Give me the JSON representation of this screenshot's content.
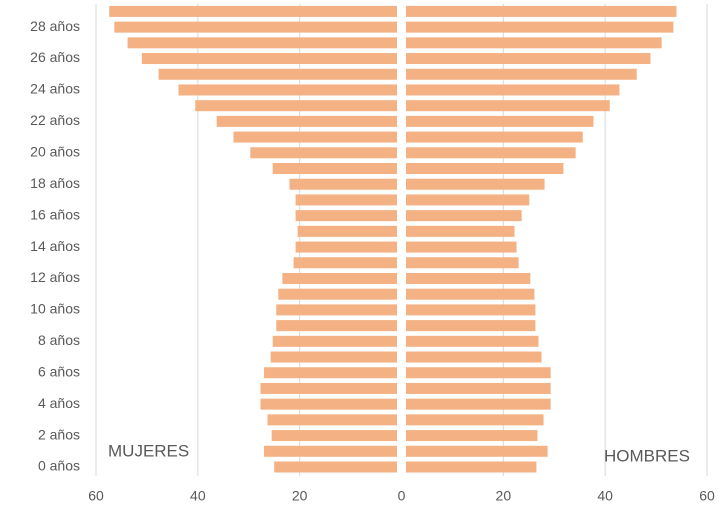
{
  "chart_data": {
    "type": "pyramid",
    "categories": [
      "0 años",
      null,
      "2 años",
      null,
      "4 años",
      null,
      "6 años",
      null,
      "8 años",
      null,
      "10 años",
      null,
      "12 años",
      null,
      "14 años",
      null,
      "16 años",
      null,
      "18 años",
      null,
      "20 años",
      null,
      "22 años",
      null,
      "24 años",
      null,
      "26 años",
      null,
      "28 años",
      null
    ],
    "series": [
      {
        "name": "MUJERES",
        "side": "left",
        "color": "#f4b183",
        "values": [
          25,
          27,
          25.5,
          26.3,
          27.7,
          27.7,
          27,
          25.7,
          25.3,
          24.6,
          24.6,
          24.2,
          23.4,
          21.2,
          20.8,
          20.4,
          20.8,
          20.8,
          22,
          25.3,
          29.7,
          33,
          36.3,
          40.5,
          43.8,
          47.7,
          51,
          53.8,
          56.4,
          57.4
        ]
      },
      {
        "name": "HOMBRES",
        "side": "right",
        "color": "#f4b183",
        "values": [
          26.5,
          28.7,
          26.7,
          27.9,
          29.3,
          29.3,
          29.3,
          27.5,
          26.9,
          26.3,
          26.3,
          26.1,
          25.3,
          23,
          22.6,
          22.2,
          23.6,
          25.1,
          28.1,
          31.8,
          34.2,
          35.6,
          37.7,
          40.9,
          42.8,
          46.2,
          48.9,
          51.1,
          53.4,
          54
        ]
      }
    ],
    "xlim": [
      -60,
      60
    ],
    "xticks": [
      {
        "value": -60,
        "label": "60"
      },
      {
        "value": -40,
        "label": "40"
      },
      {
        "value": -20,
        "label": "20"
      },
      0,
      20,
      40,
      60
    ],
    "grid": true
  }
}
